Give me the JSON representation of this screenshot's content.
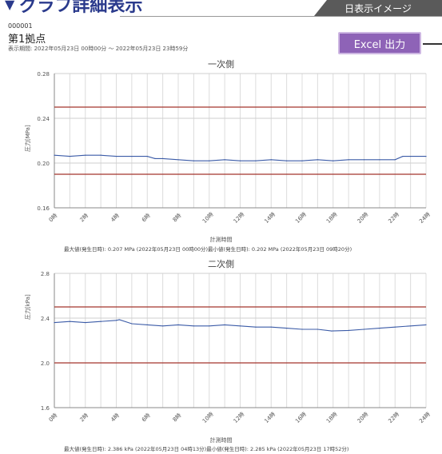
{
  "header": {
    "title": "グラフ詳細表示",
    "tab_label": "日表示イメージ"
  },
  "site": {
    "code": "000001",
    "name": "第1拠点",
    "period": "表示期間: 2022年05月23日 00時00分 ～ 2022年05月23日 23時59分"
  },
  "excel_button": {
    "label": "Excel 出力"
  },
  "colors": {
    "line": "#3b5ba7",
    "threshold": "#a3342c",
    "button": "#8e63b7"
  },
  "chart_data": [
    {
      "type": "line",
      "title": "一次側",
      "ylabel": "圧力[MPa]",
      "xlabel": "計測時間",
      "ylim": [
        0.16,
        0.28
      ],
      "yticks": [
        "0.28",
        "0.24",
        "0.20",
        "0.16"
      ],
      "ytick_values": [
        0.28,
        0.24,
        0.2,
        0.16
      ],
      "xticks": [
        "0時",
        "2時",
        "4時",
        "6時",
        "8時",
        "10時",
        "12時",
        "14時",
        "16時",
        "18時",
        "20時",
        "22時",
        "24時"
      ],
      "thresholds": [
        0.25,
        0.19
      ],
      "x": [
        0,
        1,
        2,
        3,
        4,
        5,
        6,
        6.5,
        7,
        8,
        9,
        10,
        11,
        12,
        13,
        14,
        15,
        16,
        17,
        18,
        19,
        20,
        21,
        22,
        22.5,
        23,
        24
      ],
      "y": [
        0.207,
        0.206,
        0.207,
        0.207,
        0.206,
        0.206,
        0.206,
        0.204,
        0.204,
        0.203,
        0.202,
        0.202,
        0.203,
        0.202,
        0.202,
        0.203,
        0.202,
        0.202,
        0.203,
        0.202,
        0.203,
        0.203,
        0.203,
        0.203,
        0.206,
        0.206,
        0.206
      ],
      "stats": "最大値(発生日時): 0.207 MPa (2022年05月23日 00時00分)最小値(発生日時): 0.202 MPa (2022年05月23日 09時20分)"
    },
    {
      "type": "line",
      "title": "二次側",
      "ylabel": "圧力[kPa]",
      "xlabel": "計測時間",
      "ylim": [
        1.6,
        2.8
      ],
      "yticks": [
        "2.8",
        "2.4",
        "2.0",
        "1.6"
      ],
      "ytick_values": [
        2.8,
        2.4,
        2.0,
        1.6
      ],
      "xticks": [
        "0時",
        "2時",
        "4時",
        "6時",
        "8時",
        "10時",
        "12時",
        "14時",
        "16時",
        "18時",
        "20時",
        "22時",
        "24時"
      ],
      "thresholds": [
        2.5,
        2.0
      ],
      "x": [
        0,
        1,
        2,
        3,
        4,
        4.2,
        5,
        6,
        7,
        8,
        9,
        10,
        11,
        12,
        13,
        14,
        15,
        16,
        17,
        17.9,
        19,
        20,
        21,
        22,
        23,
        24
      ],
      "y": [
        2.36,
        2.37,
        2.36,
        2.37,
        2.38,
        2.386,
        2.35,
        2.34,
        2.33,
        2.34,
        2.33,
        2.33,
        2.34,
        2.33,
        2.32,
        2.32,
        2.31,
        2.3,
        2.3,
        2.285,
        2.29,
        2.3,
        2.31,
        2.32,
        2.33,
        2.34
      ],
      "stats": "最大値(発生日時): 2.386 kPa (2022年05月23日 04時13分)最小値(発生日時): 2.285 kPa (2022年05月23日 17時52分)"
    }
  ]
}
